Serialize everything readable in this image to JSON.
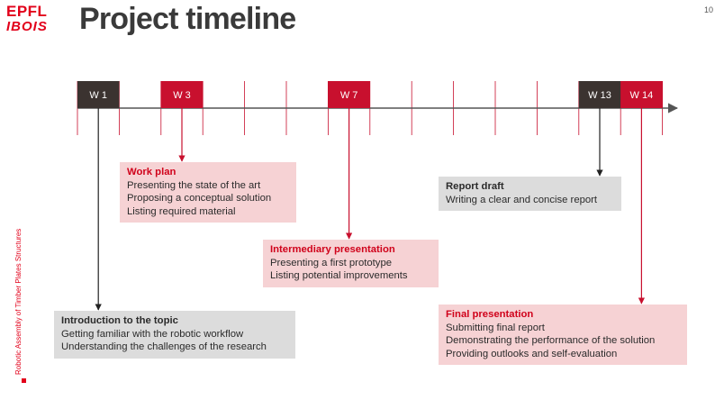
{
  "header": {
    "logo_line1": "EPFL",
    "logo_line2": "IBOIS",
    "title": "Project timeline",
    "page_number": "10"
  },
  "sidebar_label": "Robotic Assembly of Timber Plates Structures",
  "colors": {
    "accent_red": "#c8102e",
    "dark": "#3b3330",
    "light_red": "#f6d2d4",
    "light_grey": "#dcdcdc",
    "axis": "#555555"
  },
  "timeline": {
    "weeks_total": 14,
    "milestones": [
      {
        "week": 1,
        "label": "W 1",
        "style": "dark"
      },
      {
        "week": 3,
        "label": "W 3",
        "style": "red"
      },
      {
        "week": 7,
        "label": "W 7",
        "style": "red"
      },
      {
        "week": 13,
        "label": "W 13",
        "style": "dark"
      },
      {
        "week": 14,
        "label": "W 14",
        "style": "red"
      }
    ]
  },
  "boxes": {
    "intro": {
      "title": "Introduction to the topic",
      "lines": [
        "Getting familiar with the robotic workflow",
        "Understanding the challenges of the research"
      ]
    },
    "workplan": {
      "title": "Work plan",
      "lines": [
        "Presenting the state of the art",
        "Proposing a conceptual solution",
        "Listing required material"
      ]
    },
    "intermediary": {
      "title": "Intermediary presentation",
      "lines": [
        "Presenting a first prototype",
        "Listing potential improvements"
      ]
    },
    "report": {
      "title": "Report draft",
      "lines": [
        "Writing a clear and concise report"
      ]
    },
    "final": {
      "title": "Final presentation",
      "lines": [
        "Submitting final report",
        "Demonstrating the performance of the solution",
        "Providing outlooks and self-evaluation"
      ]
    }
  }
}
